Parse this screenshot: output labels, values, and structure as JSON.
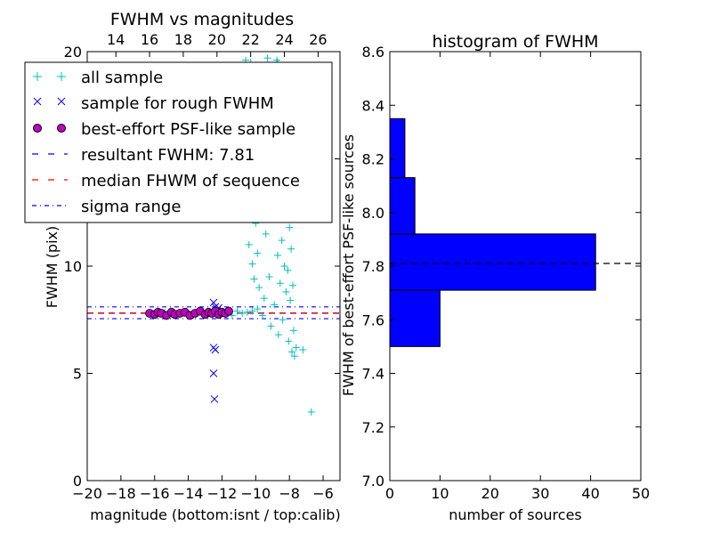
{
  "chart_data": [
    {
      "type": "scatter",
      "title": "FWHM vs magnitudes",
      "xlabel": "magnitude (bottom:isnt / top:calib)",
      "ylabel": "FWHM (pix)",
      "xlim": [
        -20,
        -5
      ],
      "ylim": [
        0,
        20
      ],
      "x_ticks": [
        "−20",
        "−18",
        "−16",
        "−14",
        "−12",
        "−10",
        "−8",
        "−6"
      ],
      "y_ticks": [
        "0",
        "5",
        "10",
        "15",
        "20"
      ],
      "top_axis_ticks": [
        "14",
        "16",
        "18",
        "20",
        "22",
        "24",
        "26"
      ],
      "top_axis_offset": 32.3,
      "grid": false,
      "legend_position": "top-left",
      "series": [
        {
          "name": "all sample",
          "marker": "plus",
          "color": "#00bfbf",
          "points": [
            [
              -16.2,
              7.8
            ],
            [
              -15.9,
              7.7
            ],
            [
              -15.4,
              7.85
            ],
            [
              -15.0,
              7.75
            ],
            [
              -14.6,
              7.8
            ],
            [
              -14.1,
              7.9
            ],
            [
              -13.7,
              7.7
            ],
            [
              -13.3,
              7.85
            ],
            [
              -12.9,
              7.8
            ],
            [
              -12.6,
              7.75
            ],
            [
              -12.3,
              7.9
            ],
            [
              -12.0,
              7.8
            ],
            [
              -11.7,
              7.85
            ],
            [
              -11.4,
              7.7
            ],
            [
              -11.1,
              7.9
            ],
            [
              -10.8,
              7.8
            ],
            [
              -10.5,
              7.85
            ],
            [
              -10.2,
              7.9
            ],
            [
              -9.9,
              8.0
            ],
            [
              -9.6,
              7.7
            ],
            [
              -10.4,
              11.0
            ],
            [
              -10.2,
              10.1
            ],
            [
              -10.0,
              12.0
            ],
            [
              -9.8,
              9.0
            ],
            [
              -9.7,
              13.0
            ],
            [
              -9.5,
              8.5
            ],
            [
              -9.4,
              11.5
            ],
            [
              -9.3,
              14.0
            ],
            [
              -9.2,
              9.5
            ],
            [
              -9.1,
              7.2
            ],
            [
              -9.0,
              12.5
            ],
            [
              -8.9,
              8.2
            ],
            [
              -8.8,
              15.0
            ],
            [
              -8.7,
              10.5
            ],
            [
              -8.65,
              6.8
            ],
            [
              -8.6,
              17.0
            ],
            [
              -8.55,
              9.2
            ],
            [
              -8.5,
              13.5
            ],
            [
              -8.45,
              11.2
            ],
            [
              -8.4,
              7.5
            ],
            [
              -8.35,
              16.0
            ],
            [
              -8.3,
              10.0
            ],
            [
              -8.25,
              12.8
            ],
            [
              -8.2,
              8.8
            ],
            [
              -8.15,
              14.5
            ],
            [
              -8.1,
              9.8
            ],
            [
              -8.05,
              6.5
            ],
            [
              -8.0,
              11.8
            ],
            [
              -7.95,
              8.4
            ],
            [
              -7.9,
              10.8
            ],
            [
              -7.85,
              6.0
            ],
            [
              -7.8,
              9.1
            ],
            [
              -7.75,
              7.0
            ],
            [
              -7.7,
              5.8
            ],
            [
              -7.6,
              6.2
            ],
            [
              -7.2,
              6.1
            ],
            [
              -6.7,
              3.2
            ],
            [
              -8.7,
              19.5
            ],
            [
              -8.75,
              19.6
            ],
            [
              -9.3,
              19.7
            ],
            [
              -10.3,
              19.5
            ],
            [
              -10.6,
              19.6
            ],
            [
              -9.5,
              16.5
            ],
            [
              -10.1,
              9.4
            ],
            [
              -9.9,
              10.6
            ]
          ]
        },
        {
          "name": "sample for rough FWHM",
          "marker": "x",
          "color": "#0000ff",
          "points": [
            [
              -12.5,
              8.3
            ],
            [
              -12.4,
              8.1
            ],
            [
              -12.3,
              7.9
            ],
            [
              -12.2,
              8.05
            ],
            [
              -12.5,
              6.2
            ],
            [
              -12.4,
              6.1
            ],
            [
              -12.5,
              5.0
            ],
            [
              -12.45,
              3.8
            ]
          ]
        },
        {
          "name": "best-effort PSF-like sample",
          "marker": "circle",
          "color": "#bf00bf",
          "points": [
            [
              -16.3,
              7.8
            ],
            [
              -16.0,
              7.75
            ],
            [
              -15.8,
              7.85
            ],
            [
              -15.6,
              7.8
            ],
            [
              -15.3,
              7.7
            ],
            [
              -15.0,
              7.85
            ],
            [
              -14.8,
              7.75
            ],
            [
              -14.5,
              7.8
            ],
            [
              -14.2,
              7.85
            ],
            [
              -13.9,
              7.7
            ],
            [
              -13.6,
              7.8
            ],
            [
              -13.3,
              7.9
            ],
            [
              -13.0,
              7.75
            ],
            [
              -12.8,
              7.85
            ],
            [
              -12.6,
              7.8
            ],
            [
              -12.4,
              7.9
            ],
            [
              -12.2,
              7.75
            ],
            [
              -12.0,
              7.85
            ],
            [
              -11.8,
              7.8
            ],
            [
              -11.6,
              7.9
            ]
          ]
        }
      ],
      "hlines": [
        {
          "name": "resultant FWHM: 7.81",
          "y": 7.81,
          "style": "dashed",
          "color": "#0000ff"
        },
        {
          "name": "median FHWM of sequence",
          "y": 7.8,
          "style": "dashed",
          "color": "#ff0000"
        },
        {
          "name": "sigma range",
          "y": 8.1,
          "style": "dashdot",
          "color": "#0000ff"
        },
        {
          "name": "sigma range",
          "y": 7.55,
          "style": "dashdot",
          "color": "#0000ff"
        }
      ]
    },
    {
      "type": "bar",
      "orientation": "horizontal",
      "title": "histogram of FWHM",
      "xlabel": "number of sources",
      "ylabel": "FWHM of best-effort PSF-like sources",
      "xlim": [
        0,
        50
      ],
      "ylim": [
        7.0,
        8.6
      ],
      "x_ticks": [
        "0",
        "10",
        "20",
        "30",
        "40",
        "50"
      ],
      "y_ticks": [
        "7.0",
        "7.2",
        "7.4",
        "7.6",
        "7.8",
        "8.0",
        "8.2",
        "8.4",
        "8.6"
      ],
      "grid": false,
      "bar_color": "#0000ff",
      "bins": [
        {
          "low": 7.5,
          "high": 7.71,
          "count": 10
        },
        {
          "low": 7.71,
          "high": 7.92,
          "count": 41
        },
        {
          "low": 7.92,
          "high": 8.13,
          "count": 5
        },
        {
          "low": 8.13,
          "high": 8.35,
          "count": 3
        }
      ],
      "reference_line": {
        "y": 7.81,
        "style": "dashed",
        "color": "#000000"
      }
    }
  ]
}
